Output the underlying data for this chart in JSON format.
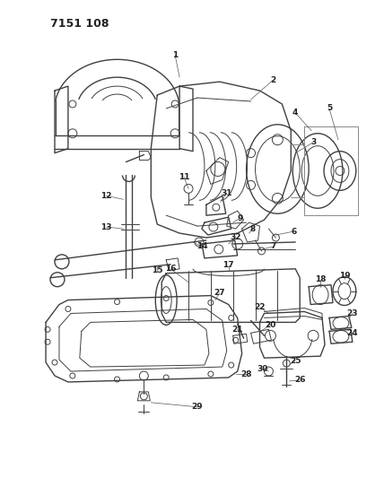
{
  "title": "7151 108",
  "bg": "#ffffff",
  "lc": "#404040",
  "tc": "#222222",
  "fig_w": 4.28,
  "fig_h": 5.33,
  "dpi": 100
}
